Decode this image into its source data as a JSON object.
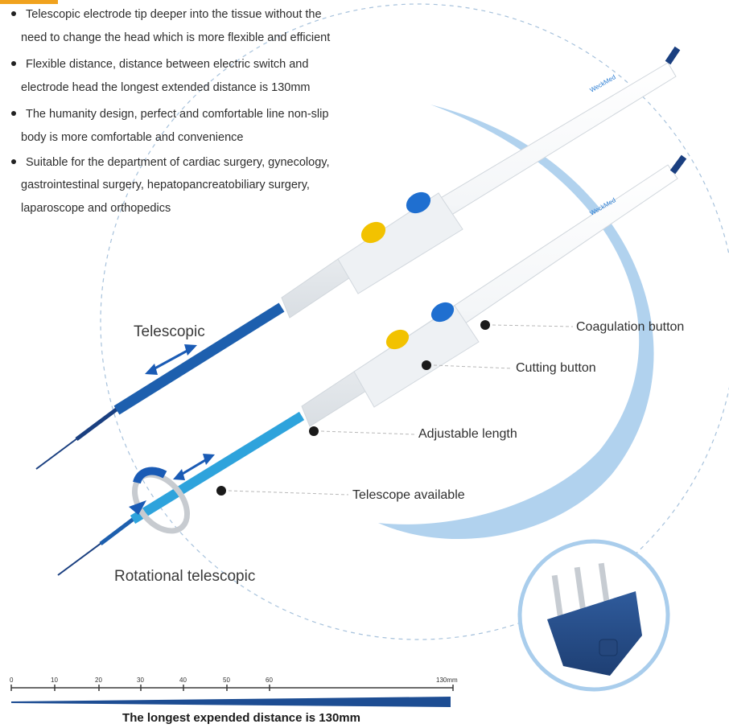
{
  "bullets": [
    {
      "line1": "Telescopic electrode tip deeper into the tissue without the",
      "line2": "need to change the head which is more flexible and efficient"
    },
    {
      "line1": "Flexible distance, distance between electric switch and",
      "line2": "electrode head the longest extended distance is 130mm"
    },
    {
      "line1": "The humanity design, perfect and comfortable line non-slip",
      "line2": "body is more comfortable and convenience"
    },
    {
      "line1": "Suitable for the department of cardiac surgery, gynecology,",
      "line2": "gastrointestinal surgery, hepatopancreatobiliary surgery,",
      "line3": "laparoscope and orthopedics"
    }
  ],
  "labels": {
    "telescopic": "Telescopic",
    "rotational": "Rotational telescopic",
    "coagulation": "Coagulation button",
    "cutting": "Cutting button",
    "adjustable": "Adjustable length",
    "telescope_available": "Telescope available",
    "brand": "WeckMed"
  },
  "ruler": {
    "ticks": [
      "0",
      "10",
      "20",
      "30",
      "40",
      "50",
      "60",
      "130mm"
    ],
    "caption": "The longest expended distance is 130mm"
  },
  "colors": {
    "accent_blue": "#1a5bb5",
    "light_blue": "#2ea3dc",
    "arc_blue": "#a9cdec",
    "button_yellow": "#f2c200",
    "button_blue": "#1f6fd0",
    "tip_orange": "#f0a21e"
  }
}
